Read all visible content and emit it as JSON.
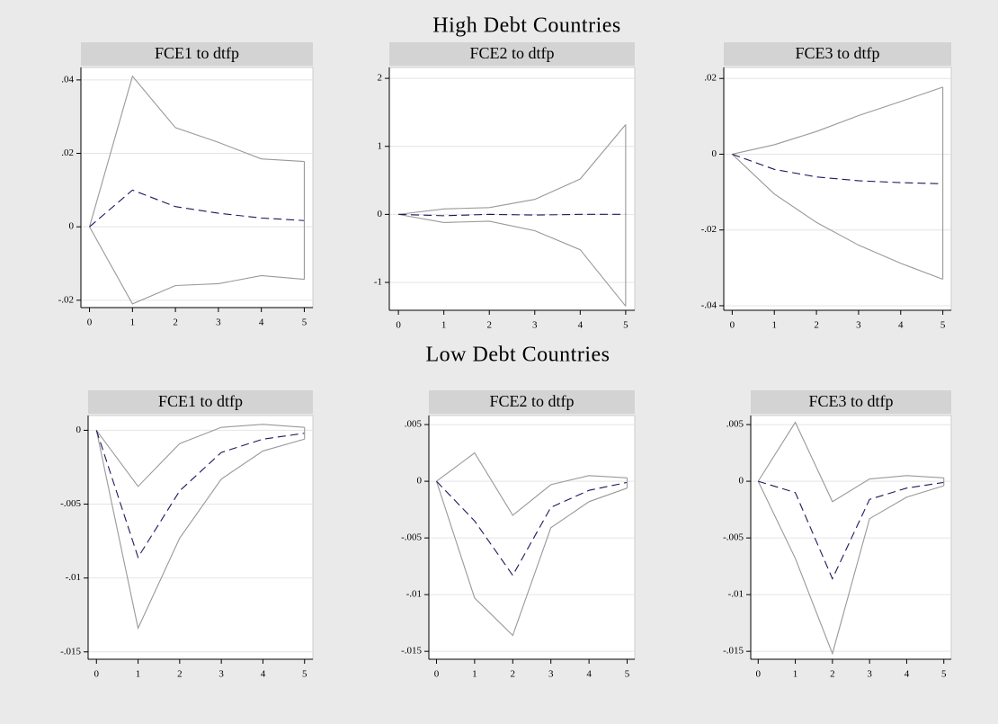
{
  "titles": [
    "High Debt Countries",
    "Low Debt Countries"
  ],
  "chart_data": [
    {
      "type": "line",
      "title": "FCE1 to dtfp",
      "x": [
        0,
        1,
        2,
        3,
        4,
        5
      ],
      "xlim": [
        -0.2,
        5.2
      ],
      "xticks": [
        0,
        1,
        2,
        3,
        4,
        5
      ],
      "ylim": [
        -0.022,
        0.0434
      ],
      "yticks": [
        {
          "value": -0.02,
          "label": "-.02"
        },
        0,
        {
          "value": 0.02,
          "label": ".02"
        },
        {
          "value": 0.04,
          "label": ".04"
        }
      ],
      "grid": true,
      "series": [
        {
          "color": "#999999",
          "style": "solid",
          "values": [
            0,
            0.041,
            0.027,
            0.023,
            0.0185,
            0.0178
          ]
        },
        {
          "color": "#999999",
          "style": "solid",
          "values": [
            0,
            -0.021,
            -0.016,
            -0.0155,
            -0.0133,
            -0.0143
          ]
        },
        {
          "color": "#1a1a5e",
          "style": "dashed",
          "values": [
            0,
            0.01,
            0.0055,
            0.0037,
            0.0024,
            0.0017
          ]
        }
      ]
    },
    {
      "type": "line",
      "title": "FCE2 to dtfp",
      "x": [
        0,
        1,
        2,
        3,
        4,
        5
      ],
      "xlim": [
        -0.2,
        5.2
      ],
      "xticks": [
        0,
        1,
        2,
        3,
        4,
        5
      ],
      "ylim": [
        -1.41,
        2.16
      ],
      "yticks": [
        -1,
        0,
        1,
        2
      ],
      "grid": true,
      "series": [
        {
          "color": "#999999",
          "style": "solid",
          "values": [
            0,
            0.08,
            0.1,
            0.22,
            0.52,
            1.32
          ]
        },
        {
          "color": "#999999",
          "style": "solid",
          "values": [
            0,
            -0.12,
            -0.1,
            -0.24,
            -0.52,
            -1.35
          ]
        },
        {
          "color": "#1a1a5e",
          "style": "dashed",
          "values": [
            0,
            -0.02,
            0,
            -0.01,
            0,
            0
          ]
        }
      ]
    },
    {
      "type": "line",
      "title": "FCE3 to dtfp",
      "x": [
        0,
        1,
        2,
        3,
        4,
        5
      ],
      "xlim": [
        -0.2,
        5.2
      ],
      "xticks": [
        0,
        1,
        2,
        3,
        4,
        5
      ],
      "ylim": [
        -0.0412,
        0.0229
      ],
      "yticks": [
        {
          "value": -0.04,
          "label": "-.04"
        },
        {
          "value": -0.02,
          "label": "-.02"
        },
        0,
        {
          "value": 0.02,
          "label": ".02"
        }
      ],
      "grid": true,
      "series": [
        {
          "color": "#999999",
          "style": "solid",
          "values": [
            0,
            0.0025,
            0.006,
            0.0102,
            0.0139,
            0.0177
          ]
        },
        {
          "color": "#999999",
          "style": "solid",
          "values": [
            0,
            -0.0105,
            -0.018,
            -0.024,
            -0.0288,
            -0.033
          ]
        },
        {
          "color": "#1a1a5e",
          "style": "dashed",
          "values": [
            0,
            -0.004,
            -0.006,
            -0.007,
            -0.0075,
            -0.0078
          ]
        }
      ]
    },
    {
      "type": "line",
      "title": "FCE1 to dtfp",
      "x": [
        0,
        1,
        2,
        3,
        4,
        5
      ],
      "xlim": [
        -0.2,
        5.2
      ],
      "xticks": [
        0,
        1,
        2,
        3,
        4,
        5
      ],
      "ylim": [
        -0.0155,
        0.001
      ],
      "yticks": [
        {
          "value": -0.015,
          "label": "-.015"
        },
        {
          "value": -0.01,
          "label": "-.01"
        },
        {
          "value": -0.005,
          "label": "-.005"
        },
        0
      ],
      "grid": true,
      "series": [
        {
          "color": "#999999",
          "style": "solid",
          "values": [
            0,
            -0.0038,
            -0.0009,
            0.0002,
            0.0004,
            0.0002
          ]
        },
        {
          "color": "#999999",
          "style": "solid",
          "values": [
            0,
            -0.0134,
            -0.0073,
            -0.0033,
            -0.0014,
            -0.0006
          ]
        },
        {
          "color": "#1a1a5e",
          "style": "dashed",
          "values": [
            0,
            -0.0086,
            -0.0041,
            -0.0015,
            -0.0006,
            -0.0002
          ]
        }
      ]
    },
    {
      "type": "line",
      "title": "FCE2 to dtfp",
      "x": [
        0,
        1,
        2,
        3,
        4,
        5
      ],
      "xlim": [
        -0.2,
        5.2
      ],
      "xticks": [
        0,
        1,
        2,
        3,
        4,
        5
      ],
      "ylim": [
        -0.0157,
        0.0058
      ],
      "yticks": [
        {
          "value": -0.015,
          "label": "-.015"
        },
        {
          "value": -0.01,
          "label": "-.01"
        },
        {
          "value": -0.005,
          "label": "-.005"
        },
        0,
        {
          "value": 0.005,
          "label": ".005"
        }
      ],
      "grid": true,
      "series": [
        {
          "color": "#999999",
          "style": "solid",
          "values": [
            0,
            0.0025,
            -0.003,
            -0.0003,
            0.0005,
            0.0003
          ]
        },
        {
          "color": "#999999",
          "style": "solid",
          "values": [
            0,
            -0.0103,
            -0.0136,
            -0.0041,
            -0.0018,
            -0.0006
          ]
        },
        {
          "color": "#1a1a5e",
          "style": "dashed",
          "values": [
            0,
            -0.0035,
            -0.0083,
            -0.0023,
            -0.0008,
            -0.0001
          ]
        }
      ]
    },
    {
      "type": "line",
      "title": "FCE3 to dtfp",
      "x": [
        0,
        1,
        2,
        3,
        4,
        5
      ],
      "xlim": [
        -0.2,
        5.2
      ],
      "xticks": [
        0,
        1,
        2,
        3,
        4,
        5
      ],
      "ylim": [
        -0.0157,
        0.0058
      ],
      "yticks": [
        {
          "value": -0.015,
          "label": "-.015"
        },
        {
          "value": -0.01,
          "label": "-.01"
        },
        {
          "value": -0.005,
          "label": "-.005"
        },
        0,
        {
          "value": 0.005,
          "label": ".005"
        }
      ],
      "grid": true,
      "series": [
        {
          "color": "#999999",
          "style": "solid",
          "values": [
            0,
            0.0052,
            -0.0018,
            0.0002,
            0.0005,
            0.0003
          ]
        },
        {
          "color": "#999999",
          "style": "solid",
          "values": [
            0,
            -0.0068,
            -0.0152,
            -0.0033,
            -0.0014,
            -0.0004
          ]
        },
        {
          "color": "#1a1a5e",
          "style": "dashed",
          "values": [
            0,
            -0.001,
            -0.0086,
            -0.0016,
            -0.0006,
            -0.0001
          ]
        }
      ]
    }
  ]
}
